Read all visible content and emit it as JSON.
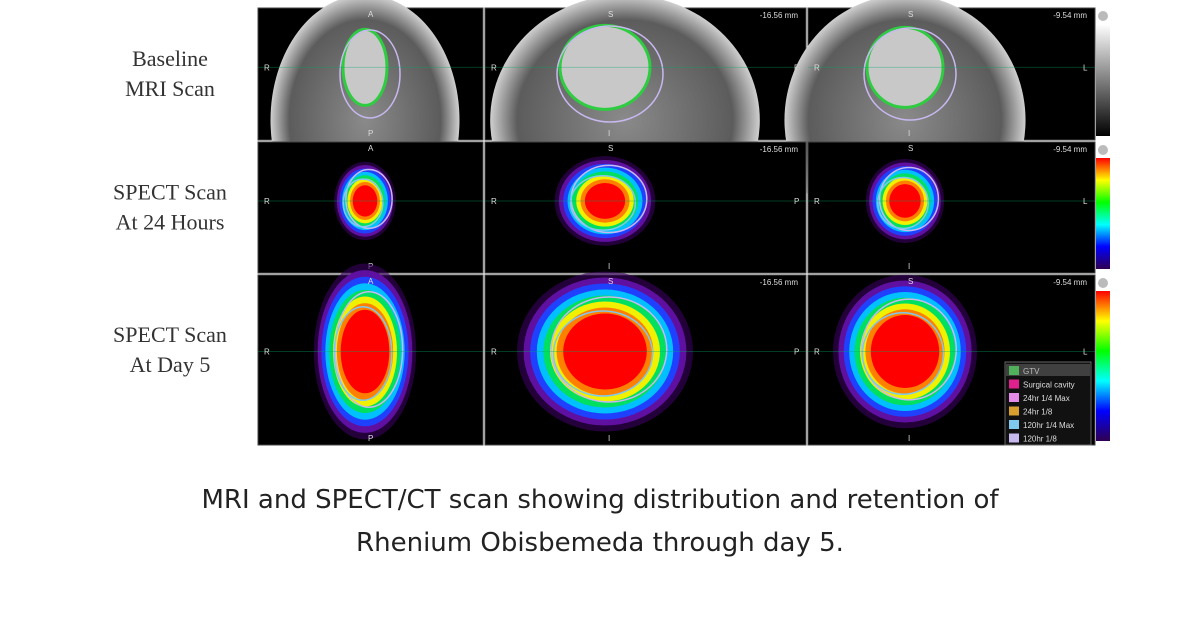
{
  "rows": [
    {
      "label_lines": [
        "Baseline",
        "MRI Scan"
      ]
    },
    {
      "label_lines": [
        "SPECT Scan",
        "At 24 Hours"
      ]
    },
    {
      "label_lines": [
        "SPECT Scan",
        "At Day 5"
      ]
    }
  ],
  "orientation": {
    "anterior": "A",
    "posterior": "P",
    "superior": "S",
    "inferior": "I",
    "right": "R",
    "left": "L"
  },
  "depth_labels": [
    "-16.56 mm",
    "-9.54 mm"
  ],
  "legend": [
    {
      "name": "GTV",
      "color": "#2ecc40"
    },
    {
      "name": "Surgical cavity",
      "color": "#e0208c"
    },
    {
      "name": "24hr 1/4 Max",
      "color": "#e48ae8"
    },
    {
      "name": "24hr 1/8",
      "color": "#d9a030"
    },
    {
      "name": "120hr 1/4 Max",
      "color": "#7fc8f0"
    },
    {
      "name": "120hr 1/8",
      "color": "#c8b8f0"
    }
  ],
  "caption_lines": [
    "MRI and SPECT/CT scan showing distribution and retention of",
    "Rhenium Obisbemeda through day 5."
  ]
}
